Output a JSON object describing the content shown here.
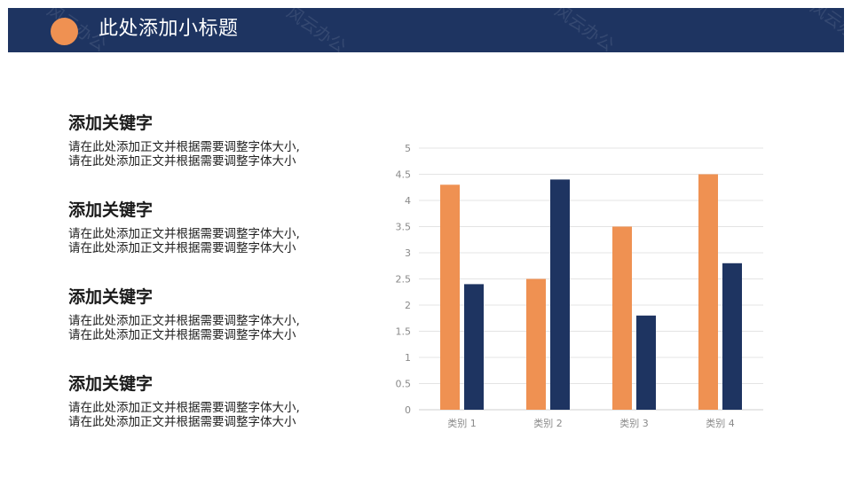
{
  "header": {
    "title": "此处添加小标题",
    "background": "#1e3461",
    "dot_color": "#ef9152",
    "watermark": "风云办公"
  },
  "sections": [
    {
      "title": "添加关键字",
      "body": [
        "请在此处添加正文并根据需要调整字体大小,",
        "请在此处添加正文并根据需要调整字体大小"
      ]
    },
    {
      "title": "添加关键字",
      "body": [
        "请在此处添加正文并根据需要调整字体大小,",
        "请在此处添加正文并根据需要调整字体大小"
      ]
    },
    {
      "title": "添加关键字",
      "body": [
        "请在此处添加正文并根据需要调整字体大小,",
        "请在此处添加正文并根据需要调整字体大小"
      ]
    },
    {
      "title": "添加关键字",
      "body": [
        "请在此处添加正文并根据需要调整字体大小,",
        "请在此处添加正文并根据需要调整字体大小"
      ]
    }
  ],
  "chart_data": {
    "type": "bar",
    "title": "",
    "xlabel": "",
    "ylabel": "",
    "categories": [
      "类别 1",
      "类别 2",
      "类别 3",
      "类别 4"
    ],
    "series": [
      {
        "values": [
          4.3,
          2.5,
          3.5,
          4.5
        ],
        "color": "#ef9152"
      },
      {
        "values": [
          2.4,
          4.4,
          1.8,
          2.8
        ],
        "color": "#1e3461"
      }
    ],
    "ylim": [
      0,
      5
    ],
    "yticks": [
      "0",
      "0.5",
      "1",
      "1.5",
      "2",
      "2.5",
      "3",
      "3.5",
      "4",
      "4.5",
      "5"
    ],
    "grid": true,
    "legend": "none"
  }
}
